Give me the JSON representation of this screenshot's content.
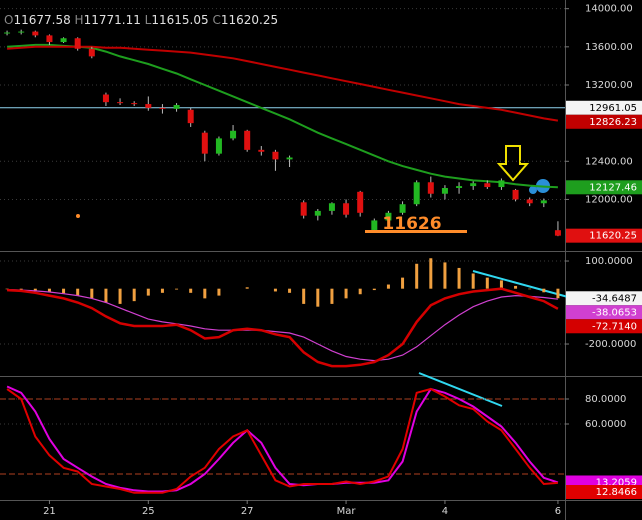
{
  "chart_data": [
    {
      "type": "candlestick",
      "ohlc_labels": [
        "O",
        "H",
        "L",
        "C"
      ],
      "categories": [
        null,
        null,
        null,
        "21",
        null,
        null,
        null,
        null,
        null,
        null,
        "25",
        null,
        null,
        null,
        null,
        null,
        null,
        "27",
        null,
        null,
        null,
        null,
        null,
        null,
        "Mar",
        null,
        null,
        null,
        null,
        null,
        null,
        "4",
        null,
        null,
        null,
        null,
        null,
        null,
        null,
        "6"
      ],
      "open": [
        13740,
        13750,
        13760,
        13720,
        13650,
        13690,
        13580,
        13100,
        13020,
        13010,
        13000,
        12960,
        12950,
        12940,
        12700,
        12480,
        12640,
        12720,
        12520,
        12500,
        12420,
        11970,
        11830,
        11880,
        11960,
        12080,
        11680,
        11780,
        11860,
        11950,
        12180,
        12060,
        12120,
        12140,
        12170,
        12130,
        12100,
        12000,
        11960,
        11677.58
      ],
      "high": [
        13770,
        13780,
        13770,
        13730,
        13700,
        13700,
        13600,
        13120,
        13060,
        13030,
        13080,
        13000,
        13010,
        12960,
        12720,
        12660,
        12780,
        12730,
        12560,
        12520,
        12460,
        11990,
        11900,
        11970,
        12000,
        12090,
        11800,
        11880,
        11980,
        12200,
        12240,
        12150,
        12180,
        12190,
        12200,
        12220,
        12110,
        12020,
        12010,
        11771.11
      ],
      "low": [
        13720,
        13730,
        13700,
        13620,
        13640,
        13560,
        13480,
        12980,
        12990,
        12980,
        12930,
        12900,
        12920,
        12760,
        12400,
        12460,
        12620,
        12500,
        12460,
        12300,
        12340,
        11800,
        11780,
        11840,
        11810,
        11820,
        11660,
        11760,
        11840,
        11930,
        12020,
        12000,
        12060,
        12100,
        12110,
        12100,
        11980,
        11930,
        11920,
        11615.05
      ],
      "close": [
        13750,
        13760,
        13720,
        13650,
        13690,
        13580,
        13500,
        13020,
        13010,
        13000,
        12960,
        12950,
        12990,
        12800,
        12480,
        12640,
        12720,
        12520,
        12500,
        12420,
        12440,
        11830,
        11880,
        11960,
        11840,
        11860,
        11780,
        11860,
        11950,
        12180,
        12060,
        12120,
        12140,
        12170,
        12130,
        12200,
        12000,
        11960,
        11990,
        11620.25
      ],
      "up_color": "#22b822",
      "down_color": "#e01010",
      "series": [
        {
          "color": "#1e9e1e",
          "values": [
            13600,
            13610,
            13620,
            13620,
            13610,
            13600,
            13590,
            13550,
            13500,
            13460,
            13420,
            13370,
            13320,
            13260,
            13200,
            13140,
            13080,
            13020,
            12960,
            12900,
            12840,
            12770,
            12700,
            12640,
            12580,
            12520,
            12460,
            12400,
            12350,
            12310,
            12270,
            12240,
            12220,
            12200,
            12190,
            12180,
            12160,
            12145,
            12135,
            12127.46
          ]
        },
        {
          "color": "#c00000",
          "values": [
            13580,
            13590,
            13600,
            13600,
            13600,
            13600,
            13600,
            13590,
            13590,
            13580,
            13570,
            13560,
            13550,
            13540,
            13520,
            13500,
            13480,
            13450,
            13420,
            13390,
            13360,
            13330,
            13300,
            13270,
            13240,
            13210,
            13180,
            13150,
            13120,
            13090,
            13060,
            13030,
            13000,
            12980,
            12960,
            12940,
            12910,
            12880,
            12850,
            12826.23
          ]
        }
      ],
      "hlines": [
        {
          "value": 12961.05,
          "color": "#8fd4f0"
        }
      ],
      "annotation": "11626",
      "annotation_color": "#ff8c2a",
      "ylim": [
        11470,
        14070
      ],
      "yticks": [
        {
          "value": 14000,
          "label": "14000.00"
        },
        {
          "value": 13600,
          "label": "13600.00"
        },
        {
          "value": 13200,
          "label": "13200.00"
        },
        {
          "value": 12400,
          "label": "12400.00"
        },
        {
          "value": 12000,
          "label": "12000.00"
        }
      ],
      "grid": true
    },
    {
      "type": "macd",
      "ylim": [
        -312,
        129
      ],
      "yticks": [
        {
          "value": 100,
          "label": "100.0000"
        },
        {
          "value": -200,
          "label": "-200.0000"
        }
      ],
      "grid": true,
      "histogram": {
        "color": "#f0a040",
        "values": [
          -2,
          -3,
          -7,
          -13,
          -17,
          -25,
          -35,
          -50,
          -55,
          -45,
          -25,
          -15,
          -3,
          -15,
          -35,
          -25,
          0,
          5,
          0,
          -10,
          -15,
          -55,
          -65,
          -55,
          -35,
          -20,
          -5,
          15,
          40,
          90,
          110,
          95,
          75,
          55,
          40,
          30,
          10,
          -2,
          -13,
          -34.6487
        ]
      },
      "series": [
        {
          "color": "#d40000",
          "values": [
            -5,
            -8,
            -15,
            -25,
            -35,
            -50,
            -70,
            -100,
            -125,
            -135,
            -135,
            -135,
            -130,
            -150,
            -180,
            -175,
            -150,
            -145,
            -150,
            -165,
            -175,
            -230,
            -265,
            -280,
            -280,
            -275,
            -265,
            -240,
            -200,
            -120,
            -60,
            -35,
            -20,
            -10,
            -5,
            0,
            -15,
            -30,
            -45,
            -72.714
          ],
          "value_labels": [
            null,
            null,
            null,
            null,
            null,
            null,
            null,
            null,
            null,
            null,
            null,
            null,
            null,
            null,
            null,
            null,
            null,
            null,
            null,
            null,
            null,
            null,
            null,
            null,
            null,
            null,
            null,
            null,
            null,
            null,
            null,
            null,
            null,
            null,
            null,
            null,
            null,
            null,
            null,
            "-72.7140"
          ]
        },
        {
          "color": "#d040d0",
          "values": [
            -3,
            -5,
            -8,
            -12,
            -18,
            -25,
            -35,
            -50,
            -70,
            -90,
            -110,
            -120,
            -127,
            -135,
            -145,
            -150,
            -150,
            -150,
            -150,
            -155,
            -160,
            -175,
            -200,
            -225,
            -245,
            -255,
            -260,
            -255,
            -240,
            -210,
            -170,
            -130,
            -95,
            -65,
            -45,
            -30,
            -25,
            -28,
            -32,
            -38.0653
          ]
        }
      ]
    },
    {
      "type": "line",
      "ylim": [
        0,
        96.8
      ],
      "yticks": [
        {
          "value": 80,
          "label": "80.0000"
        },
        {
          "value": 60,
          "label": "60.0000"
        }
      ],
      "grid": true,
      "levels": [
        80,
        20
      ],
      "series": [
        {
          "color": "#e000e0",
          "values": [
            90,
            85,
            70,
            48,
            32,
            25,
            18,
            12,
            9,
            7,
            6,
            6,
            7,
            12,
            20,
            32,
            45,
            55,
            45,
            25,
            12,
            11,
            12,
            12,
            13,
            13,
            13,
            15,
            30,
            70,
            88,
            85,
            80,
            74,
            66,
            58,
            45,
            30,
            17,
            13.2059
          ]
        },
        {
          "color": "#e00000",
          "values": [
            88,
            80,
            50,
            35,
            25,
            22,
            12,
            10,
            8,
            5,
            5,
            5,
            8,
            18,
            25,
            40,
            50,
            55,
            35,
            15,
            10,
            12,
            12,
            12,
            14,
            12,
            14,
            18,
            40,
            85,
            88,
            82,
            75,
            72,
            62,
            55,
            40,
            25,
            12,
            12.8466
          ]
        }
      ]
    }
  ]
}
